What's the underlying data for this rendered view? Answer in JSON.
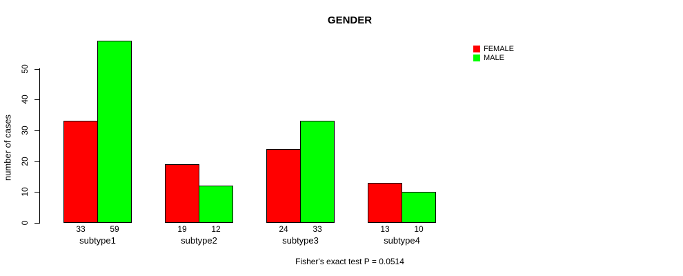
{
  "chart_data": {
    "type": "bar",
    "title": "GENDER",
    "ylabel": "number of cases",
    "xlabel": "",
    "footnote": "Fisher's exact test P = 0.0514",
    "categories": [
      "subtype1",
      "subtype2",
      "subtype3",
      "subtype4"
    ],
    "series": [
      {
        "name": "FEMALE",
        "color": "#ff0000",
        "values": [
          33,
          19,
          24,
          13
        ]
      },
      {
        "name": "MALE",
        "color": "#00ff00",
        "values": [
          59,
          12,
          33,
          10
        ]
      }
    ],
    "bar_value_labels": [
      [
        "33",
        "59"
      ],
      [
        "19",
        "12"
      ],
      [
        "24",
        "33"
      ],
      [
        "13",
        "10"
      ]
    ],
    "y_ticks": [
      0,
      10,
      20,
      30,
      40,
      50
    ],
    "ylim": [
      0,
      59
    ],
    "grid": false,
    "legend_position": "top-right",
    "bar_border_color": "#000000",
    "axis_color": "#000000",
    "background_color": "#ffffff"
  }
}
